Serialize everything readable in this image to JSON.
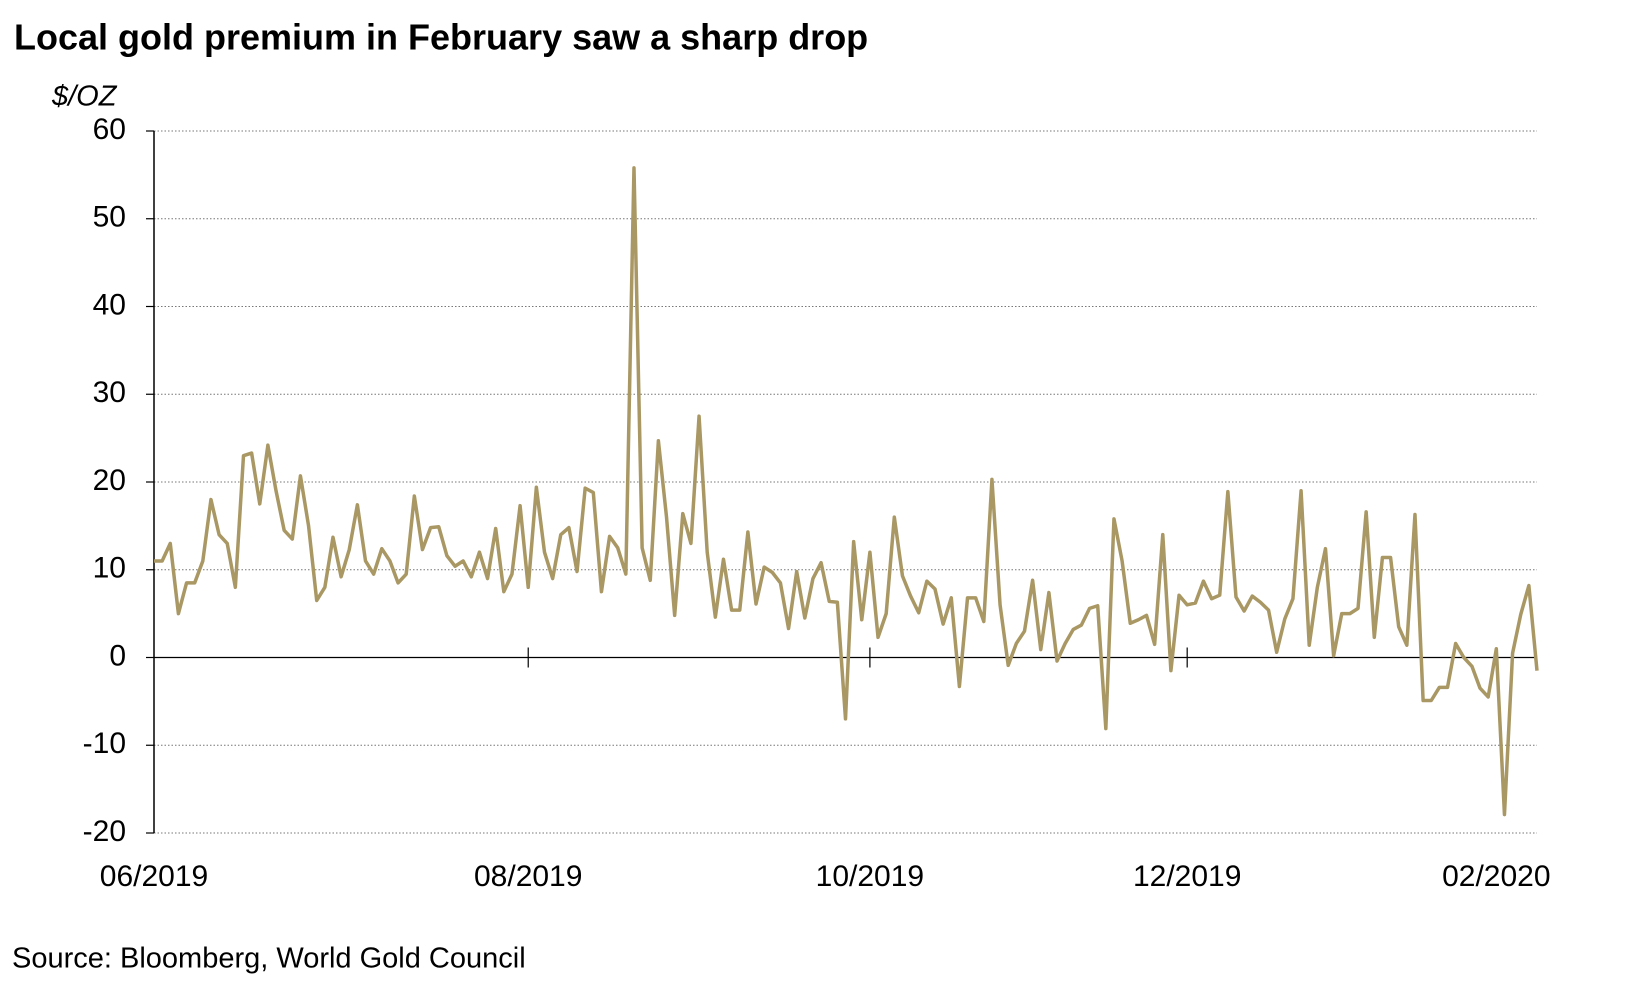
{
  "chart_data": {
    "type": "line",
    "title": "Local gold premium in February saw a sharp drop",
    "y_label": "$/OZ",
    "source": "Source: Bloomberg, World Gold Council",
    "categories": [
      "06/2019",
      null,
      null,
      null,
      null,
      null,
      null,
      null,
      null,
      null,
      null,
      null,
      null,
      null,
      null,
      null,
      null,
      null,
      null,
      null,
      null,
      null,
      null,
      null,
      null,
      null,
      null,
      null,
      null,
      null,
      null,
      null,
      null,
      null,
      null,
      null,
      null,
      null,
      null,
      null,
      null,
      null,
      null,
      null,
      null,
      null,
      "08/2019",
      null,
      null,
      null,
      null,
      null,
      null,
      null,
      null,
      null,
      null,
      null,
      null,
      null,
      null,
      null,
      null,
      null,
      null,
      null,
      null,
      null,
      null,
      null,
      null,
      null,
      null,
      null,
      null,
      null,
      null,
      null,
      null,
      null,
      null,
      null,
      null,
      null,
      null,
      null,
      null,
      null,
      "10/2019",
      null,
      null,
      null,
      null,
      null,
      null,
      null,
      null,
      null,
      null,
      null,
      null,
      null,
      null,
      null,
      null,
      null,
      null,
      null,
      null,
      null,
      null,
      null,
      null,
      null,
      null,
      null,
      null,
      null,
      null,
      null,
      null,
      null,
      null,
      null,
      null,
      null,
      null,
      "12/2019",
      null,
      null,
      null,
      null,
      null,
      null,
      null,
      null,
      null,
      null,
      null,
      null,
      null,
      null,
      null,
      null,
      null,
      null,
      null,
      null,
      null,
      null,
      null,
      null,
      null,
      null,
      null,
      null,
      null,
      null,
      null,
      null,
      null,
      null,
      null,
      null,
      null,
      "02/2020",
      null,
      null,
      null,
      null,
      null
    ],
    "series": [
      {
        "name": "Local gold premium",
        "color": "#a99764",
        "values": [
          11,
          11,
          13,
          5,
          8.5,
          8.5,
          11,
          18,
          14,
          13,
          8,
          23,
          23.3,
          17.5,
          24.2,
          19,
          14.5,
          13.5,
          20.7,
          15,
          6.5,
          8,
          13.7,
          9.2,
          12.3,
          17.4,
          11,
          9.5,
          12.4,
          11,
          8.5,
          9.5,
          18.4,
          12.3,
          14.8,
          14.9,
          11.6,
          10.4,
          11,
          9.2,
          12,
          9,
          14.7,
          7.5,
          9.5,
          17.3,
          8,
          19.4,
          12,
          9,
          14,
          14.8,
          9.8,
          19.3,
          18.8,
          7.5,
          13.8,
          12.5,
          9.5,
          55.8,
          12.5,
          8.8,
          24.7,
          16,
          4.8,
          16.4,
          13,
          27.5,
          12,
          4.6,
          11.2,
          5.4,
          5.4,
          14.3,
          6.1,
          10.3,
          9.7,
          8.5,
          3.3,
          9.8,
          4.5,
          9,
          10.8,
          6.4,
          6.3,
          -7,
          13.2,
          4.3,
          12,
          2.3,
          5,
          16,
          9.3,
          7,
          5.1,
          8.7,
          7.8,
          3.8,
          6.8,
          -3.3,
          6.8,
          6.8,
          4.1,
          20.3,
          6,
          -0.9,
          1.6,
          3,
          8.8,
          0.9,
          7.4,
          -0.4,
          1.6,
          3.2,
          3.7,
          5.6,
          5.9,
          -8.1,
          15.8,
          11,
          3.9,
          4.3,
          4.8,
          1.5,
          14,
          -1.5,
          7.1,
          6,
          6.2,
          8.7,
          6.7,
          7.1,
          18.9,
          6.9,
          5.3,
          7,
          6.3,
          5.4,
          0.6,
          4.4,
          6.7,
          19,
          1.4,
          8,
          12.4,
          0.2,
          5,
          5,
          5.6,
          16.6,
          2.3,
          11.4,
          11.4,
          3.5,
          1.4,
          16.3,
          -4.9,
          -4.9,
          -3.4,
          -3.4,
          1.6,
          0,
          -1,
          -3.5,
          -4.5,
          1,
          -17.9,
          0.5,
          4.9,
          8.2,
          -1.5
        ]
      }
    ],
    "ylim": [
      -20,
      60
    ],
    "yticks": [
      -20,
      -10,
      0,
      10,
      20,
      30,
      40,
      50,
      60
    ],
    "grid": true
  }
}
